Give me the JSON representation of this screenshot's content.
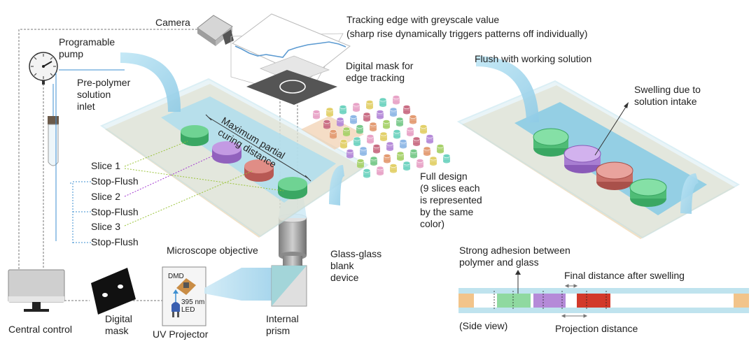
{
  "labels": {
    "camera": "Camera",
    "tracking_title": "Tracking edge with greyscale value",
    "tracking_sub": "(sharp rise dynamically triggers patterns off individually)",
    "pump": "Programable\npump",
    "pre_polymer": "Pre-polymer\nsolution\ninlet",
    "digital_mask_tracking": "Digital mask for\nedge tracking",
    "max_curing": "Maximum partial\ncuring distance",
    "slice1": "Slice 1",
    "stopflush1": "Stop-Flush",
    "slice2": "Slice 2",
    "stopflush2": "Stop-Flush",
    "slice3": "Slice 3",
    "stopflush3": "Stop-Flush",
    "full_design": "Full design\n(9 slices each\nis represented\nby the same\ncolor)",
    "microscope": "Microscope objective",
    "glass_device": "Glass-glass\nblank\ndevice",
    "dmd": "DMD",
    "led": "395 nm\nLED",
    "central_control": "Central control",
    "digital_mask": "Digital\nmask",
    "uv_projector": "UV Projector",
    "internal_prism": "Internal\nprism",
    "flush": "Flush with working solution",
    "swelling": "Swelling due to\nsolution intake",
    "adhesion": "Strong adhesion between\npolymer and glass",
    "final_distance": "Final distance after swelling",
    "side_view": "(Side view)",
    "projection_distance": "Projection distance"
  },
  "colors": {
    "slice_green": "#5cc77f",
    "slice_purple": "#b58ad8",
    "slice_red": "#d9736c",
    "channel": "#a8dcef",
    "device_base": "#e8c998",
    "glass_edge": "#bfe3ee",
    "line_blue": "#3d8fd1",
    "line_purple": "#a43ad1",
    "line_green": "#9bc43a",
    "side_red": "#d2392a"
  },
  "icons": [
    "camera-icon",
    "pump-gauge-icon",
    "monitor-icon",
    "led-icon",
    "mask-card-icon"
  ]
}
